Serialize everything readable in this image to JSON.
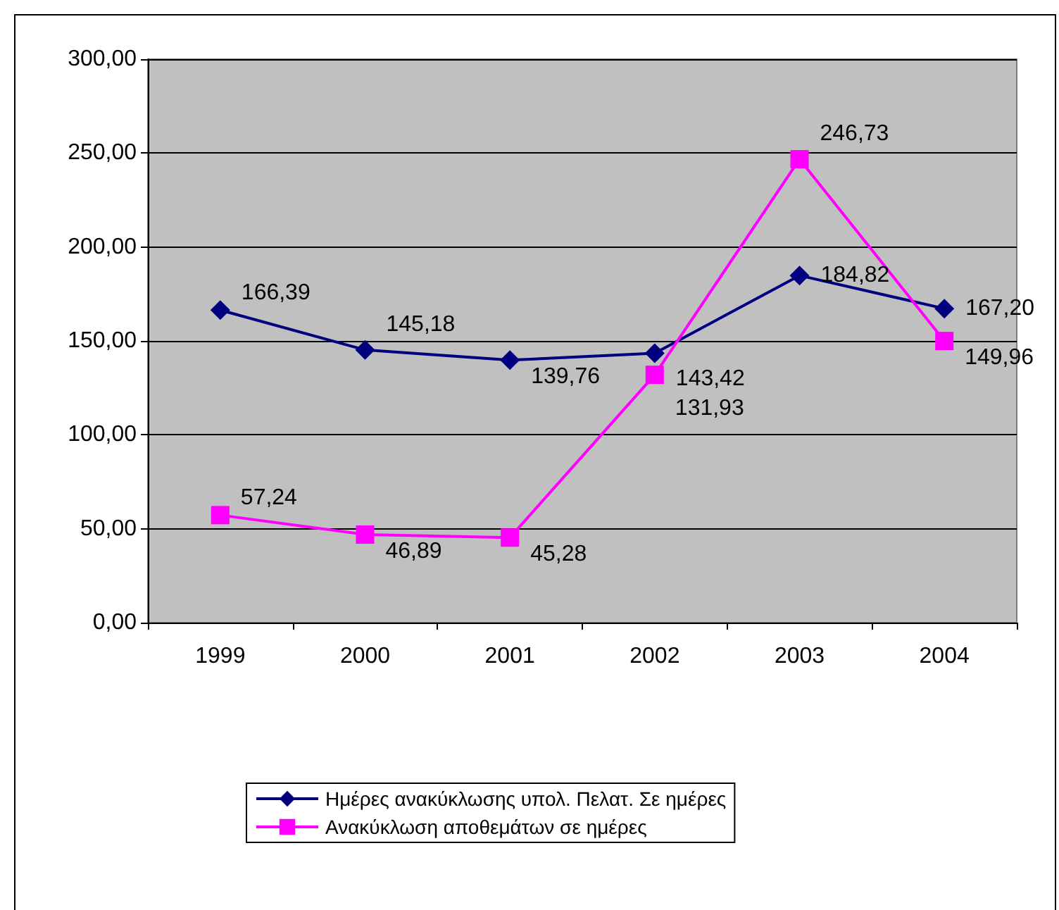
{
  "chart_data": {
    "type": "line",
    "categories": [
      "1999",
      "2000",
      "2001",
      "2002",
      "2003",
      "2004"
    ],
    "series": [
      {
        "name": "Ημέρες ανακύκλωσης υπολ. Πελατ. Σε ημέρες",
        "color": "#000080",
        "marker": "diamond",
        "values": [
          166.39,
          145.18,
          139.76,
          143.42,
          184.82,
          167.2
        ],
        "value_labels": [
          "166,39",
          "145,18",
          "139,76",
          "143,42",
          "184,82",
          "167,20"
        ]
      },
      {
        "name": "Ανακύκλωση αποθεμάτων σε ημέρες",
        "color": "#ff00ff",
        "marker": "square",
        "values": [
          57.24,
          46.89,
          45.28,
          131.93,
          246.73,
          149.96
        ],
        "value_labels": [
          "57,24",
          "46,89",
          "45,28",
          "131,93",
          "246,73",
          "149,96"
        ]
      }
    ],
    "ylim": [
      0,
      300
    ],
    "yticks": [
      {
        "value": 0,
        "label": "0,00"
      },
      {
        "value": 50,
        "label": "50,00"
      },
      {
        "value": 100,
        "label": "100,00"
      },
      {
        "value": 150,
        "label": "150,00"
      },
      {
        "value": 200,
        "label": "200,00"
      },
      {
        "value": 250,
        "label": "250,00"
      },
      {
        "value": 300,
        "label": "300,00"
      }
    ],
    "grid": "y",
    "legend": "bottom",
    "line_style": "solid"
  }
}
